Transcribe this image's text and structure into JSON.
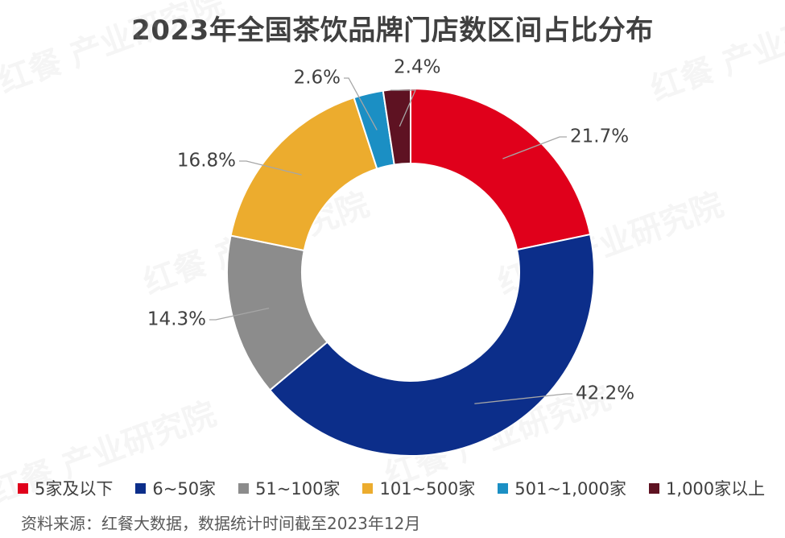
{
  "chart_data": {
    "type": "pie",
    "title": "2023年全国茶饮品牌门店数区间占比分布",
    "categories": [
      "5家及以下",
      "6~50家",
      "51~100家",
      "101~500家",
      "501~1,000家",
      "1,000家以上"
    ],
    "values": [
      21.7,
      42.2,
      14.3,
      16.8,
      2.6,
      2.4
    ],
    "labels": [
      "21.7%",
      "42.2%",
      "14.3%",
      "16.8%",
      "2.6%",
      "2.4%"
    ],
    "colors": [
      "#e0001b",
      "#0c2e8a",
      "#8c8c8c",
      "#ecac2e",
      "#1b8fc4",
      "#5e1222"
    ],
    "donut": true,
    "legend_position": "bottom"
  },
  "source": "资料来源：红餐大数据，数据统计时间截至2023年12月",
  "watermark": "红餐 产业研究院"
}
